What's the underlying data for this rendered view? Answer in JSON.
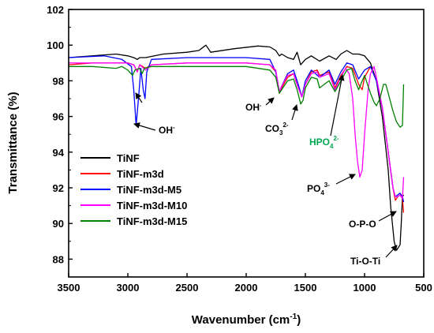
{
  "chart_data": {
    "type": "line",
    "xlabel": "Wavenumber (cm",
    "xlabel_sup": "-1",
    "xlabel_end": ")",
    "ylabel": "Transmittance (%)",
    "xlim": [
      3500,
      500
    ],
    "ylim": [
      87,
      102
    ],
    "x_ticks": [
      3500,
      3000,
      2500,
      2000,
      1500,
      1000,
      500
    ],
    "y_ticks": [
      88,
      90,
      92,
      94,
      96,
      98,
      100,
      102
    ],
    "legend_position": "bottom-left",
    "series": [
      {
        "name": "TiNF",
        "color": "#000000",
        "points": [
          [
            3500,
            99.3
          ],
          [
            3300,
            99.4
          ],
          [
            3100,
            99.5
          ],
          [
            3000,
            99.4
          ],
          [
            2950,
            99.3
          ],
          [
            2920,
            99.2
          ],
          [
            2900,
            99.3
          ],
          [
            2850,
            99.3
          ],
          [
            2700,
            99.5
          ],
          [
            2500,
            99.6
          ],
          [
            2400,
            99.7
          ],
          [
            2340,
            100.0
          ],
          [
            2300,
            99.6
          ],
          [
            2100,
            99.8
          ],
          [
            1900,
            99.95
          ],
          [
            1800,
            99.9
          ],
          [
            1750,
            99.7
          ],
          [
            1720,
            99.4
          ],
          [
            1700,
            99.5
          ],
          [
            1650,
            99.3
          ],
          [
            1600,
            99.2
          ],
          [
            1570,
            99.6
          ],
          [
            1540,
            98.9
          ],
          [
            1500,
            99.2
          ],
          [
            1450,
            99.4
          ],
          [
            1380,
            99.1
          ],
          [
            1300,
            99.4
          ],
          [
            1240,
            99.2
          ],
          [
            1200,
            99.5
          ],
          [
            1150,
            99.7
          ],
          [
            1100,
            99.5
          ],
          [
            1050,
            99.5
          ],
          [
            1000,
            99.4
          ],
          [
            950,
            99.0
          ],
          [
            900,
            98.0
          ],
          [
            850,
            96.0
          ],
          [
            800,
            93.0
          ],
          [
            780,
            91.0
          ],
          [
            750,
            89.0
          ],
          [
            730,
            88.5
          ],
          [
            700,
            88.8
          ],
          [
            690,
            90.0
          ],
          [
            680,
            91.5
          ],
          [
            670,
            91.6
          ]
        ]
      },
      {
        "name": "TiNF-m3d",
        "color": "#ff0000",
        "points": [
          [
            3500,
            98.9
          ],
          [
            3300,
            99.0
          ],
          [
            3000,
            99.0
          ],
          [
            2950,
            98.9
          ],
          [
            2920,
            98.5
          ],
          [
            2900,
            98.9
          ],
          [
            2850,
            98.7
          ],
          [
            2800,
            98.9
          ],
          [
            2500,
            99.0
          ],
          [
            2300,
            99.0
          ],
          [
            2000,
            99.0
          ],
          [
            1800,
            98.9
          ],
          [
            1750,
            98.5
          ],
          [
            1720,
            97.3
          ],
          [
            1700,
            97.6
          ],
          [
            1650,
            98.2
          ],
          [
            1600,
            98.4
          ],
          [
            1560,
            97.6
          ],
          [
            1530,
            97.1
          ],
          [
            1500,
            97.8
          ],
          [
            1450,
            98.5
          ],
          [
            1400,
            98.6
          ],
          [
            1380,
            98.3
          ],
          [
            1300,
            98.5
          ],
          [
            1250,
            97.6
          ],
          [
            1200,
            98.3
          ],
          [
            1150,
            98.8
          ],
          [
            1100,
            98.7
          ],
          [
            1050,
            97.8
          ],
          [
            1020,
            97.5
          ],
          [
            1000,
            98.2
          ],
          [
            950,
            98.8
          ],
          [
            900,
            98.0
          ],
          [
            850,
            96.5
          ],
          [
            800,
            94.0
          ],
          [
            760,
            92.0
          ],
          [
            740,
            91.3
          ],
          [
            720,
            91.5
          ],
          [
            700,
            91.6
          ],
          [
            680,
            91.4
          ],
          [
            670,
            90.6
          ]
        ]
      },
      {
        "name": "TiNF-m3d-M5",
        "color": "#0000ff",
        "points": [
          [
            3500,
            99.3
          ],
          [
            3200,
            99.4
          ],
          [
            3050,
            99.2
          ],
          [
            2970,
            98.8
          ],
          [
            2950,
            97.5
          ],
          [
            2930,
            95.5
          ],
          [
            2910,
            97.0
          ],
          [
            2890,
            98.7
          ],
          [
            2870,
            97.5
          ],
          [
            2855,
            97.0
          ],
          [
            2840,
            98.5
          ],
          [
            2800,
            99.2
          ],
          [
            2500,
            99.3
          ],
          [
            2300,
            99.3
          ],
          [
            2000,
            99.3
          ],
          [
            1800,
            99.2
          ],
          [
            1750,
            98.5
          ],
          [
            1720,
            97.4
          ],
          [
            1700,
            97.7
          ],
          [
            1650,
            98.4
          ],
          [
            1600,
            98.6
          ],
          [
            1560,
            97.8
          ],
          [
            1530,
            97.1
          ],
          [
            1500,
            98.0
          ],
          [
            1450,
            98.6
          ],
          [
            1380,
            98.2
          ],
          [
            1300,
            98.6
          ],
          [
            1250,
            97.8
          ],
          [
            1200,
            98.5
          ],
          [
            1150,
            99.0
          ],
          [
            1100,
            98.9
          ],
          [
            1050,
            98.1
          ],
          [
            1000,
            98.6
          ],
          [
            950,
            98.8
          ],
          [
            900,
            98.0
          ],
          [
            850,
            96.5
          ],
          [
            800,
            94.0
          ],
          [
            760,
            92.0
          ],
          [
            740,
            91.5
          ],
          [
            720,
            91.6
          ],
          [
            700,
            91.7
          ],
          [
            680,
            91.5
          ],
          [
            670,
            91.2
          ]
        ]
      },
      {
        "name": "TiNF-m3d-M10",
        "color": "#ff00ff",
        "points": [
          [
            3500,
            99.0
          ],
          [
            3300,
            99.0
          ],
          [
            3000,
            99.0
          ],
          [
            2950,
            98.9
          ],
          [
            2920,
            98.5
          ],
          [
            2900,
            98.9
          ],
          [
            2850,
            98.6
          ],
          [
            2800,
            98.9
          ],
          [
            2500,
            99.0
          ],
          [
            2300,
            99.0
          ],
          [
            2000,
            99.0
          ],
          [
            1800,
            98.9
          ],
          [
            1750,
            98.6
          ],
          [
            1720,
            97.4
          ],
          [
            1700,
            97.7
          ],
          [
            1650,
            98.3
          ],
          [
            1600,
            98.4
          ],
          [
            1560,
            97.6
          ],
          [
            1530,
            97.1
          ],
          [
            1500,
            97.8
          ],
          [
            1450,
            98.4
          ],
          [
            1400,
            98.5
          ],
          [
            1380,
            98.2
          ],
          [
            1300,
            98.4
          ],
          [
            1250,
            97.5
          ],
          [
            1200,
            98.2
          ],
          [
            1160,
            98.7
          ],
          [
            1130,
            98.4
          ],
          [
            1100,
            97.0
          ],
          [
            1080,
            95.0
          ],
          [
            1060,
            93.5
          ],
          [
            1040,
            92.6
          ],
          [
            1020,
            93.0
          ],
          [
            1000,
            95.0
          ],
          [
            970,
            97.5
          ],
          [
            950,
            98.4
          ],
          [
            920,
            98.8
          ],
          [
            900,
            98.2
          ],
          [
            850,
            96.5
          ],
          [
            800,
            94.0
          ],
          [
            760,
            92.0
          ],
          [
            740,
            91.5
          ],
          [
            720,
            91.5
          ],
          [
            700,
            91.6
          ],
          [
            680,
            91.4
          ],
          [
            670,
            92.6
          ]
        ]
      },
      {
        "name": "TiNF-m3d-M15",
        "color": "#008000",
        "points": [
          [
            3500,
            98.8
          ],
          [
            3300,
            98.8
          ],
          [
            3100,
            98.7
          ],
          [
            3050,
            98.8
          ],
          [
            3000,
            98.6
          ],
          [
            2960,
            98.3
          ],
          [
            2940,
            98.6
          ],
          [
            2900,
            98.7
          ],
          [
            2880,
            98.4
          ],
          [
            2860,
            98.7
          ],
          [
            2800,
            98.8
          ],
          [
            2500,
            98.8
          ],
          [
            2300,
            98.8
          ],
          [
            2000,
            98.8
          ],
          [
            1800,
            98.6
          ],
          [
            1750,
            98.2
          ],
          [
            1720,
            97.3
          ],
          [
            1700,
            97.5
          ],
          [
            1650,
            98.0
          ],
          [
            1600,
            98.1
          ],
          [
            1570,
            97.5
          ],
          [
            1540,
            96.7
          ],
          [
            1520,
            96.9
          ],
          [
            1500,
            97.6
          ],
          [
            1450,
            98.2
          ],
          [
            1400,
            98.1
          ],
          [
            1380,
            97.6
          ],
          [
            1300,
            98.0
          ],
          [
            1250,
            97.4
          ],
          [
            1200,
            98.0
          ],
          [
            1150,
            98.6
          ],
          [
            1110,
            98.7
          ],
          [
            1080,
            98.0
          ],
          [
            1050,
            97.5
          ],
          [
            1020,
            98.0
          ],
          [
            1000,
            98.3
          ],
          [
            980,
            97.9
          ],
          [
            950,
            97.3
          ],
          [
            920,
            96.8
          ],
          [
            900,
            96.6
          ],
          [
            870,
            97.0
          ],
          [
            840,
            97.8
          ],
          [
            820,
            97.8
          ],
          [
            800,
            97.3
          ],
          [
            760,
            96.3
          ],
          [
            730,
            95.7
          ],
          [
            700,
            95.4
          ],
          [
            680,
            95.5
          ],
          [
            670,
            97.8
          ]
        ]
      }
    ],
    "annotations": [
      {
        "id": "oh1",
        "text": "OH",
        "sup": "-",
        "sub": "",
        "color": "#000000"
      },
      {
        "id": "oh2",
        "text": "OH",
        "sup": "-",
        "sub": "",
        "color": "#000000"
      },
      {
        "id": "co3",
        "text": "CO",
        "sub": "3",
        "sup": "2-",
        "color": "#000000"
      },
      {
        "id": "hpo4",
        "text": "HPO",
        "sub": "4",
        "sup": "2-",
        "color": "#00a651"
      },
      {
        "id": "po4",
        "text": "PO",
        "sub": "4",
        "sup": "3-",
        "color": "#000000"
      },
      {
        "id": "opo",
        "text": "O-P-O",
        "sub": "",
        "sup": "",
        "color": "#000000"
      },
      {
        "id": "tioti",
        "text": "Ti-O-Ti",
        "sub": "",
        "sup": "",
        "color": "#000000"
      }
    ]
  }
}
